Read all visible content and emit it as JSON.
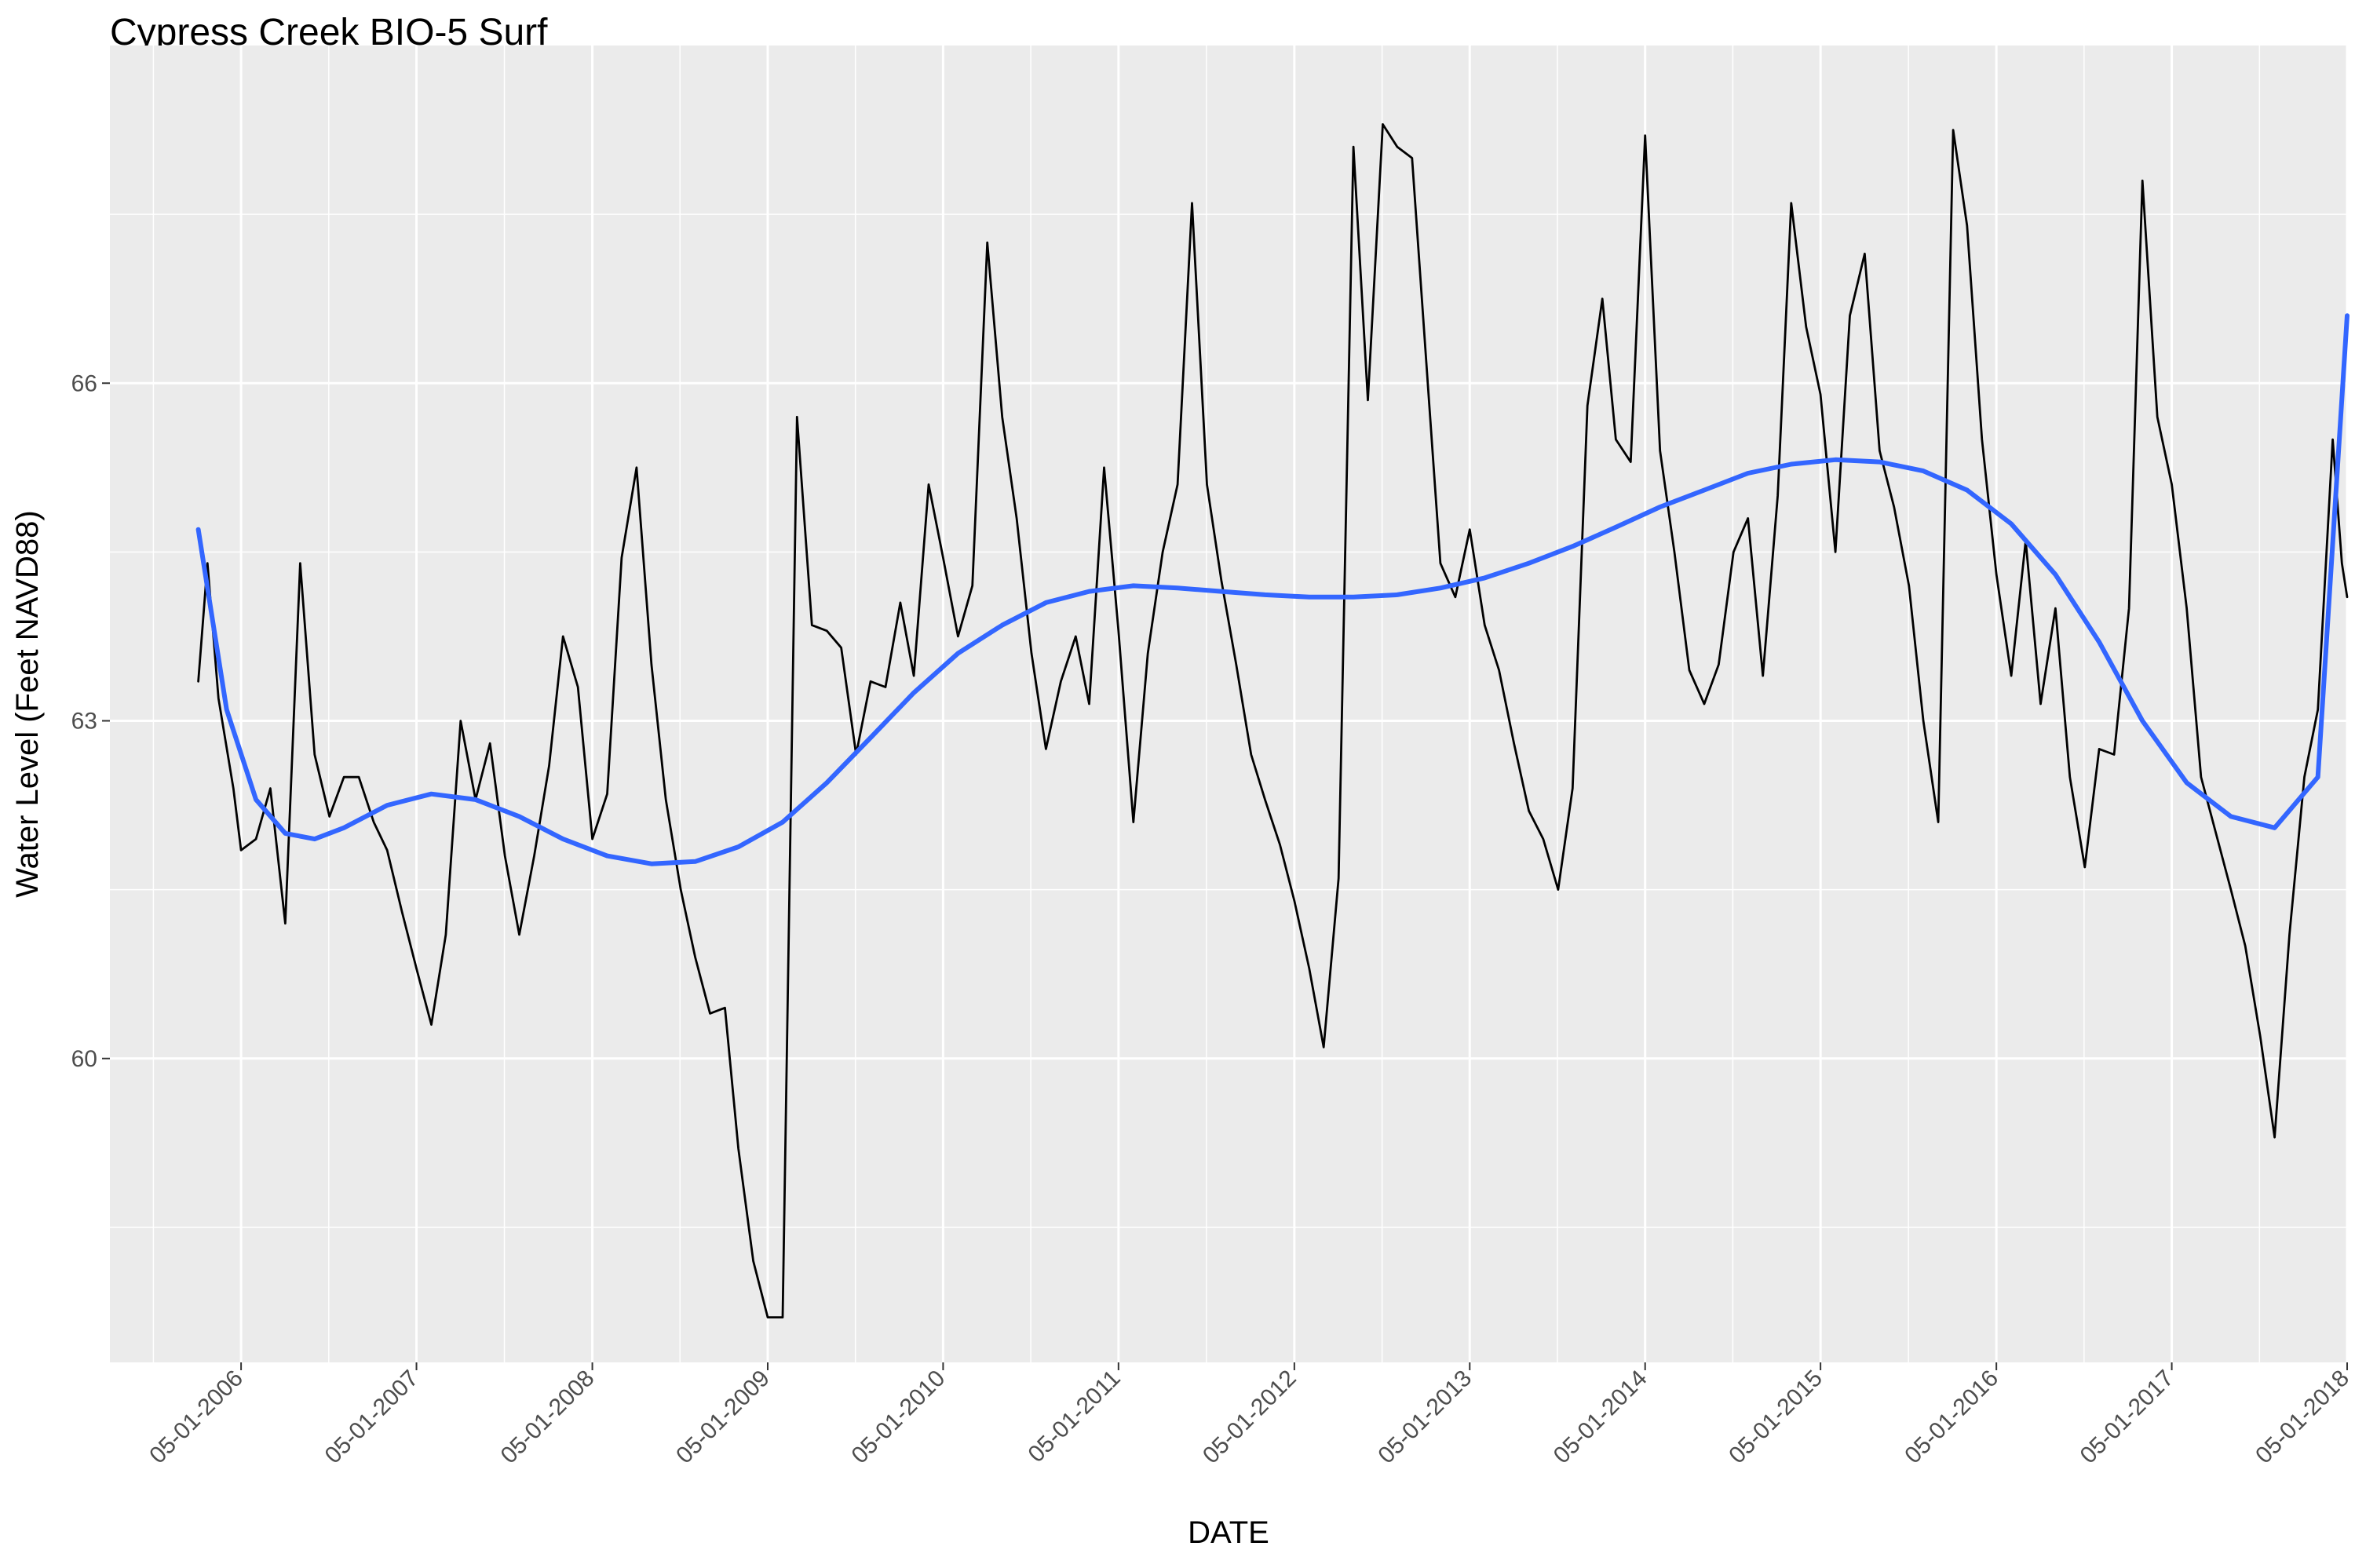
{
  "chart_data": {
    "type": "line",
    "title": "Cypress Creek BIO-5 Surf",
    "xlabel": "DATE",
    "ylabel": "Water Level (Feet NAVD88)",
    "xlim": [
      "2005-08-01",
      "2018-05-01"
    ],
    "ylim": [
      57.3,
      69.0
    ],
    "y_ticks": [
      60,
      63,
      66
    ],
    "y_minor_ticks": [
      58.5,
      61.5,
      64.5,
      67.5
    ],
    "x_ticks": [
      "2006-05-01",
      "2007-05-01",
      "2008-05-01",
      "2009-05-01",
      "2010-05-01",
      "2011-05-01",
      "2012-05-01",
      "2013-05-01",
      "2014-05-01",
      "2015-05-01",
      "2016-05-01",
      "2017-05-01",
      "2018-05-01"
    ],
    "x_tick_labels": [
      "05-01-2006",
      "05-01-2007",
      "05-01-2008",
      "05-01-2009",
      "05-01-2010",
      "05-01-2011",
      "05-01-2012",
      "05-01-2013",
      "05-01-2014",
      "05-01-2015",
      "05-01-2016",
      "05-01-2017",
      "05-01-2018"
    ],
    "grid": true,
    "background": "#ebebeb",
    "series": [
      {
        "style": "line",
        "color": "#000000",
        "points": [
          [
            "2006-02-01",
            63.35
          ],
          [
            "2006-02-20",
            64.4
          ],
          [
            "2006-03-15",
            63.2
          ],
          [
            "2006-04-15",
            62.4
          ],
          [
            "2006-05-01",
            61.85
          ],
          [
            "2006-06-01",
            61.95
          ],
          [
            "2006-07-01",
            62.4
          ],
          [
            "2006-08-01",
            61.2
          ],
          [
            "2006-09-01",
            64.4
          ],
          [
            "2006-10-01",
            62.7
          ],
          [
            "2006-11-01",
            62.15
          ],
          [
            "2006-12-01",
            62.5
          ],
          [
            "2007-01-01",
            62.5
          ],
          [
            "2007-02-01",
            62.1
          ],
          [
            "2007-03-01",
            61.85
          ],
          [
            "2007-04-01",
            61.3
          ],
          [
            "2007-05-01",
            60.8
          ],
          [
            "2007-06-01",
            60.3
          ],
          [
            "2007-07-01",
            61.1
          ],
          [
            "2007-08-01",
            63.0
          ],
          [
            "2007-09-01",
            62.3
          ],
          [
            "2007-10-01",
            62.8
          ],
          [
            "2007-11-01",
            61.8
          ],
          [
            "2007-12-01",
            61.1
          ],
          [
            "2008-01-01",
            61.8
          ],
          [
            "2008-02-01",
            62.6
          ],
          [
            "2008-03-01",
            63.75
          ],
          [
            "2008-04-01",
            63.3
          ],
          [
            "2008-05-01",
            61.95
          ],
          [
            "2008-06-01",
            62.35
          ],
          [
            "2008-07-01",
            64.45
          ],
          [
            "2008-08-01",
            65.25
          ],
          [
            "2008-09-01",
            63.5
          ],
          [
            "2008-10-01",
            62.3
          ],
          [
            "2008-11-01",
            61.5
          ],
          [
            "2008-12-01",
            60.9
          ],
          [
            "2009-01-01",
            60.4
          ],
          [
            "2009-02-01",
            60.45
          ],
          [
            "2009-03-01",
            59.2
          ],
          [
            "2009-04-01",
            58.2
          ],
          [
            "2009-05-01",
            57.7
          ],
          [
            "2009-06-01",
            57.7
          ],
          [
            "2009-07-01",
            65.7
          ],
          [
            "2009-08-01",
            63.85
          ],
          [
            "2009-09-01",
            63.8
          ],
          [
            "2009-10-01",
            63.65
          ],
          [
            "2009-11-01",
            62.7
          ],
          [
            "2009-12-01",
            63.35
          ],
          [
            "2010-01-01",
            63.3
          ],
          [
            "2010-02-01",
            64.05
          ],
          [
            "2010-03-01",
            63.4
          ],
          [
            "2010-04-01",
            65.1
          ],
          [
            "2010-05-01",
            64.45
          ],
          [
            "2010-06-01",
            63.75
          ],
          [
            "2010-07-01",
            64.2
          ],
          [
            "2010-08-01",
            67.25
          ],
          [
            "2010-09-01",
            65.7
          ],
          [
            "2010-10-01",
            64.8
          ],
          [
            "2010-11-01",
            63.6
          ],
          [
            "2010-12-01",
            62.75
          ],
          [
            "2011-01-01",
            63.35
          ],
          [
            "2011-02-01",
            63.75
          ],
          [
            "2011-03-01",
            63.15
          ],
          [
            "2011-04-01",
            65.25
          ],
          [
            "2011-05-01",
            63.8
          ],
          [
            "2011-06-01",
            62.1
          ],
          [
            "2011-07-01",
            63.6
          ],
          [
            "2011-08-01",
            64.5
          ],
          [
            "2011-09-01",
            65.1
          ],
          [
            "2011-10-01",
            67.6
          ],
          [
            "2011-11-01",
            65.1
          ],
          [
            "2011-12-01",
            64.25
          ],
          [
            "2012-01-01",
            63.5
          ],
          [
            "2012-02-01",
            62.7
          ],
          [
            "2012-03-01",
            62.3
          ],
          [
            "2012-04-01",
            61.9
          ],
          [
            "2012-05-01",
            61.4
          ],
          [
            "2012-06-01",
            60.8
          ],
          [
            "2012-07-01",
            60.1
          ],
          [
            "2012-08-01",
            61.6
          ],
          [
            "2012-09-01",
            68.1
          ],
          [
            "2012-10-01",
            65.85
          ],
          [
            "2012-11-01",
            68.3
          ],
          [
            "2012-12-01",
            68.1
          ],
          [
            "2013-01-01",
            68.0
          ],
          [
            "2013-02-01",
            66.1
          ],
          [
            "2013-03-01",
            64.4
          ],
          [
            "2013-04-01",
            64.1
          ],
          [
            "2013-05-01",
            64.7
          ],
          [
            "2013-06-01",
            63.85
          ],
          [
            "2013-07-01",
            63.45
          ],
          [
            "2013-08-01",
            62.8
          ],
          [
            "2013-09-01",
            62.2
          ],
          [
            "2013-10-01",
            61.95
          ],
          [
            "2013-11-01",
            61.5
          ],
          [
            "2013-12-01",
            62.4
          ],
          [
            "2014-01-01",
            65.8
          ],
          [
            "2014-02-01",
            66.75
          ],
          [
            "2014-03-01",
            65.5
          ],
          [
            "2014-04-01",
            65.3
          ],
          [
            "2014-05-01",
            68.2
          ],
          [
            "2014-06-01",
            65.4
          ],
          [
            "2014-07-01",
            64.5
          ],
          [
            "2014-08-01",
            63.45
          ],
          [
            "2014-09-01",
            63.15
          ],
          [
            "2014-10-01",
            63.5
          ],
          [
            "2014-11-01",
            64.5
          ],
          [
            "2014-12-01",
            64.8
          ],
          [
            "2015-01-01",
            63.4
          ],
          [
            "2015-02-01",
            65.0
          ],
          [
            "2015-03-01",
            67.6
          ],
          [
            "2015-04-01",
            66.5
          ],
          [
            "2015-05-01",
            65.9
          ],
          [
            "2015-06-01",
            64.5
          ],
          [
            "2015-07-01",
            66.6
          ],
          [
            "2015-08-01",
            67.15
          ],
          [
            "2015-09-01",
            65.4
          ],
          [
            "2015-10-01",
            64.9
          ],
          [
            "2015-11-01",
            64.2
          ],
          [
            "2015-12-01",
            63.0
          ],
          [
            "2016-01-01",
            62.1
          ],
          [
            "2016-02-01",
            68.25
          ],
          [
            "2016-03-01",
            67.4
          ],
          [
            "2016-04-01",
            65.5
          ],
          [
            "2016-05-01",
            64.3
          ],
          [
            "2016-06-01",
            63.4
          ],
          [
            "2016-07-01",
            64.6
          ],
          [
            "2016-08-01",
            63.15
          ],
          [
            "2016-09-01",
            64.0
          ],
          [
            "2016-10-01",
            62.5
          ],
          [
            "2016-11-01",
            61.7
          ],
          [
            "2016-12-01",
            62.75
          ],
          [
            "2017-01-01",
            62.7
          ],
          [
            "2017-02-01",
            64.0
          ],
          [
            "2017-03-01",
            67.8
          ],
          [
            "2017-04-01",
            65.7
          ],
          [
            "2017-05-01",
            65.1
          ],
          [
            "2017-06-01",
            64.0
          ],
          [
            "2017-07-01",
            62.5
          ],
          [
            "2017-08-01",
            62.0
          ],
          [
            "2017-09-01",
            61.5
          ],
          [
            "2017-10-01",
            61.0
          ],
          [
            "2017-11-01",
            60.2
          ],
          [
            "2017-12-01",
            59.3
          ],
          [
            "2018-01-01",
            61.1
          ],
          [
            "2018-02-01",
            62.5
          ],
          [
            "2018-03-01",
            63.1
          ],
          [
            "2018-04-01",
            65.5
          ],
          [
            "2018-04-20",
            64.4
          ],
          [
            "2018-05-01",
            64.1
          ]
        ]
      },
      {
        "style": "smooth",
        "color": "#3366ff",
        "points": [
          [
            "2006-02-01",
            64.7
          ],
          [
            "2006-04-01",
            63.1
          ],
          [
            "2006-06-01",
            62.3
          ],
          [
            "2006-08-01",
            62.0
          ],
          [
            "2006-10-01",
            61.95
          ],
          [
            "2006-12-01",
            62.05
          ],
          [
            "2007-03-01",
            62.25
          ],
          [
            "2007-06-01",
            62.35
          ],
          [
            "2007-09-01",
            62.3
          ],
          [
            "2007-12-01",
            62.15
          ],
          [
            "2008-03-01",
            61.95
          ],
          [
            "2008-06-01",
            61.8
          ],
          [
            "2008-09-01",
            61.73
          ],
          [
            "2008-12-01",
            61.75
          ],
          [
            "2009-03-01",
            61.88
          ],
          [
            "2009-06-01",
            62.1
          ],
          [
            "2009-09-01",
            62.45
          ],
          [
            "2009-12-01",
            62.85
          ],
          [
            "2010-03-01",
            63.25
          ],
          [
            "2010-06-01",
            63.6
          ],
          [
            "2010-09-01",
            63.85
          ],
          [
            "2010-12-01",
            64.05
          ],
          [
            "2011-03-01",
            64.15
          ],
          [
            "2011-06-01",
            64.2
          ],
          [
            "2011-09-01",
            64.18
          ],
          [
            "2011-12-01",
            64.15
          ],
          [
            "2012-03-01",
            64.12
          ],
          [
            "2012-06-01",
            64.1
          ],
          [
            "2012-09-01",
            64.1
          ],
          [
            "2012-12-01",
            64.12
          ],
          [
            "2013-03-01",
            64.18
          ],
          [
            "2013-06-01",
            64.27
          ],
          [
            "2013-09-01",
            64.4
          ],
          [
            "2013-12-01",
            64.55
          ],
          [
            "2014-03-01",
            64.72
          ],
          [
            "2014-06-01",
            64.9
          ],
          [
            "2014-09-01",
            65.05
          ],
          [
            "2014-12-01",
            65.2
          ],
          [
            "2015-03-01",
            65.28
          ],
          [
            "2015-06-01",
            65.32
          ],
          [
            "2015-09-01",
            65.3
          ],
          [
            "2015-12-01",
            65.22
          ],
          [
            "2016-03-01",
            65.05
          ],
          [
            "2016-06-01",
            64.75
          ],
          [
            "2016-09-01",
            64.3
          ],
          [
            "2016-12-01",
            63.7
          ],
          [
            "2017-03-01",
            63.0
          ],
          [
            "2017-06-01",
            62.45
          ],
          [
            "2017-09-01",
            62.15
          ],
          [
            "2017-12-01",
            62.05
          ],
          [
            "2018-03-01",
            62.5
          ],
          [
            "2018-05-01",
            66.6
          ]
        ]
      }
    ]
  }
}
